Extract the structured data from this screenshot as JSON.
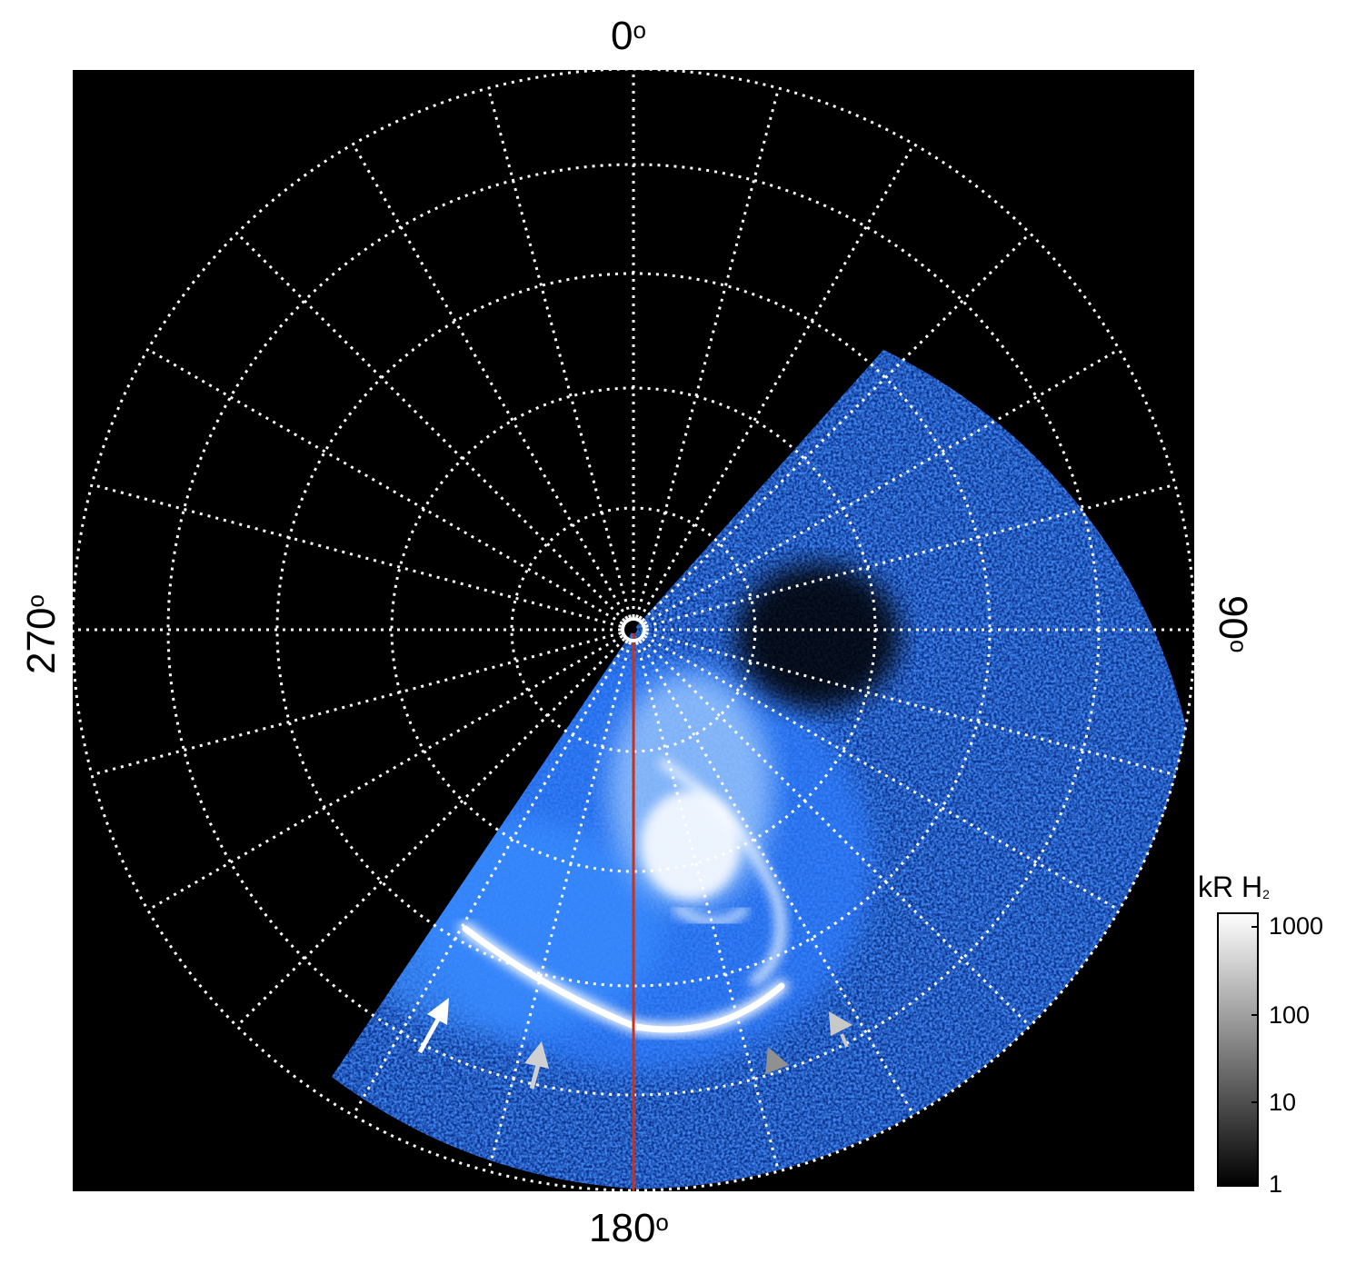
{
  "labels": {
    "top": "0",
    "bottom": "180",
    "left": "270",
    "right": "90",
    "degree_symbol": "o"
  },
  "colorbar": {
    "title": "kR H",
    "title_sub": "2",
    "ticks": [
      "1000",
      "100",
      "10",
      "1"
    ]
  },
  "colors": {
    "background": "#000000",
    "grid": "#ffffff",
    "meridian_line": "#c8321a",
    "aurora_base": "#1f5fe0",
    "aurora_bright": "#ffffff"
  }
}
